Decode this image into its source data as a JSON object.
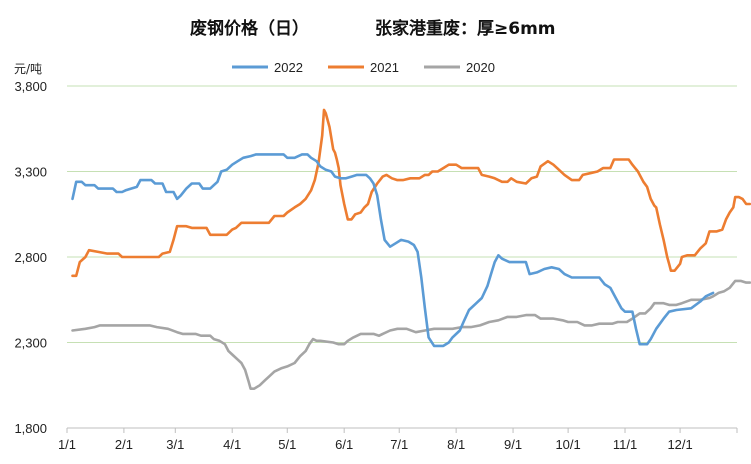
{
  "chart_data": {
    "type": "line",
    "title": "废钢价格（日）",
    "subtitle": "张家港重废：厚≥6mm",
    "ylabel": "元/吨",
    "ylim": [
      1800,
      3800
    ],
    "yticks": [
      1800,
      2300,
      2800,
      3300,
      3800
    ],
    "ytick_labels": [
      "1,800",
      "2,300",
      "2,800",
      "3,300",
      "3,800"
    ],
    "xlim": [
      0,
      365
    ],
    "xticks": [
      0,
      31,
      59,
      90,
      120,
      151,
      181,
      212,
      243,
      273,
      304,
      334,
      365
    ],
    "xtick_labels": [
      "1/1",
      "2/1",
      "3/1",
      "4/1",
      "5/1",
      "6/1",
      "7/1",
      "8/1",
      "9/1",
      "10/1",
      "11/1",
      "12/1",
      ""
    ],
    "grid": "horizontal",
    "legend_position": "top",
    "series": [
      {
        "name": "2022",
        "color": "#5B9BD5",
        "points": [
          [
            3,
            3140
          ],
          [
            5,
            3240
          ],
          [
            8,
            3240
          ],
          [
            10,
            3220
          ],
          [
            15,
            3220
          ],
          [
            17,
            3200
          ],
          [
            25,
            3200
          ],
          [
            27,
            3180
          ],
          [
            30,
            3180
          ],
          [
            32,
            3190
          ],
          [
            38,
            3210
          ],
          [
            40,
            3250
          ],
          [
            46,
            3250
          ],
          [
            48,
            3230
          ],
          [
            52,
            3230
          ],
          [
            54,
            3180
          ],
          [
            58,
            3180
          ],
          [
            60,
            3140
          ],
          [
            62,
            3160
          ],
          [
            65,
            3200
          ],
          [
            68,
            3230
          ],
          [
            72,
            3230
          ],
          [
            74,
            3200
          ],
          [
            78,
            3200
          ],
          [
            80,
            3220
          ],
          [
            82,
            3240
          ],
          [
            84,
            3300
          ],
          [
            87,
            3310
          ],
          [
            90,
            3340
          ],
          [
            93,
            3360
          ],
          [
            96,
            3380
          ],
          [
            100,
            3390
          ],
          [
            103,
            3400
          ],
          [
            118,
            3400
          ],
          [
            120,
            3380
          ],
          [
            124,
            3380
          ],
          [
            128,
            3400
          ],
          [
            131,
            3400
          ],
          [
            133,
            3380
          ],
          [
            136,
            3360
          ],
          [
            138,
            3330
          ],
          [
            141,
            3310
          ],
          [
            144,
            3300
          ],
          [
            146,
            3270
          ],
          [
            149,
            3260
          ],
          [
            152,
            3260
          ],
          [
            155,
            3270
          ],
          [
            158,
            3280
          ],
          [
            163,
            3280
          ],
          [
            165,
            3260
          ],
          [
            167,
            3230
          ],
          [
            169,
            3160
          ],
          [
            171,
            3020
          ],
          [
            173,
            2900
          ],
          [
            176,
            2860
          ],
          [
            179,
            2880
          ],
          [
            182,
            2900
          ],
          [
            186,
            2890
          ],
          [
            189,
            2870
          ],
          [
            191,
            2830
          ],
          [
            193,
            2680
          ],
          [
            195,
            2500
          ],
          [
            197,
            2330
          ],
          [
            200,
            2280
          ],
          [
            205,
            2280
          ],
          [
            208,
            2300
          ],
          [
            210,
            2330
          ],
          [
            214,
            2370
          ],
          [
            216,
            2420
          ],
          [
            219,
            2490
          ],
          [
            223,
            2530
          ],
          [
            226,
            2560
          ],
          [
            229,
            2630
          ],
          [
            231,
            2700
          ],
          [
            233,
            2770
          ],
          [
            235,
            2810
          ],
          [
            237,
            2790
          ],
          [
            241,
            2770
          ],
          [
            250,
            2770
          ],
          [
            252,
            2700
          ],
          [
            256,
            2710
          ],
          [
            260,
            2730
          ],
          [
            264,
            2740
          ],
          [
            268,
            2730
          ],
          [
            271,
            2700
          ],
          [
            275,
            2680
          ],
          [
            290,
            2680
          ],
          [
            293,
            2640
          ],
          [
            296,
            2620
          ],
          [
            299,
            2560
          ],
          [
            302,
            2500
          ],
          [
            304,
            2480
          ],
          [
            308,
            2480
          ],
          [
            310,
            2380
          ],
          [
            312,
            2290
          ],
          [
            316,
            2290
          ],
          [
            318,
            2320
          ],
          [
            321,
            2380
          ],
          [
            325,
            2440
          ],
          [
            328,
            2480
          ],
          [
            332,
            2490
          ],
          [
            340,
            2500
          ],
          [
            345,
            2540
          ],
          [
            348,
            2570
          ],
          [
            352,
            2590
          ]
        ]
      },
      {
        "name": "2021",
        "color": "#ED7D31",
        "points": [
          [
            3,
            2690
          ],
          [
            5,
            2690
          ],
          [
            7,
            2770
          ],
          [
            10,
            2800
          ],
          [
            12,
            2840
          ],
          [
            17,
            2830
          ],
          [
            22,
            2820
          ],
          [
            28,
            2820
          ],
          [
            30,
            2800
          ],
          [
            50,
            2800
          ],
          [
            52,
            2820
          ],
          [
            56,
            2830
          ],
          [
            58,
            2900
          ],
          [
            60,
            2980
          ],
          [
            65,
            2980
          ],
          [
            68,
            2970
          ],
          [
            76,
            2970
          ],
          [
            78,
            2930
          ],
          [
            84,
            2930
          ],
          [
            87,
            2930
          ],
          [
            90,
            2960
          ],
          [
            92,
            2970
          ],
          [
            95,
            3000
          ],
          [
            110,
            3000
          ],
          [
            113,
            3040
          ],
          [
            118,
            3040
          ],
          [
            120,
            3060
          ],
          [
            124,
            3090
          ],
          [
            127,
            3110
          ],
          [
            130,
            3140
          ],
          [
            133,
            3190
          ],
          [
            135,
            3250
          ],
          [
            137,
            3350
          ],
          [
            139,
            3510
          ],
          [
            140,
            3660
          ],
          [
            141,
            3640
          ],
          [
            143,
            3560
          ],
          [
            145,
            3430
          ],
          [
            146,
            3410
          ],
          [
            147,
            3370
          ],
          [
            148,
            3320
          ],
          [
            149,
            3220
          ],
          [
            151,
            3110
          ],
          [
            153,
            3020
          ],
          [
            155,
            3020
          ],
          [
            157,
            3050
          ],
          [
            160,
            3060
          ],
          [
            162,
            3090
          ],
          [
            164,
            3110
          ],
          [
            166,
            3180
          ],
          [
            169,
            3230
          ],
          [
            172,
            3270
          ],
          [
            174,
            3280
          ],
          [
            177,
            3260
          ],
          [
            180,
            3250
          ],
          [
            183,
            3250
          ],
          [
            187,
            3260
          ],
          [
            192,
            3260
          ],
          [
            195,
            3280
          ],
          [
            197,
            3280
          ],
          [
            199,
            3300
          ],
          [
            202,
            3300
          ],
          [
            205,
            3320
          ],
          [
            208,
            3340
          ],
          [
            212,
            3340
          ],
          [
            215,
            3320
          ],
          [
            224,
            3320
          ],
          [
            226,
            3280
          ],
          [
            230,
            3270
          ],
          [
            233,
            3260
          ],
          [
            237,
            3240
          ],
          [
            240,
            3240
          ],
          [
            242,
            3260
          ],
          [
            245,
            3240
          ],
          [
            250,
            3230
          ],
          [
            253,
            3260
          ],
          [
            256,
            3270
          ],
          [
            258,
            3330
          ],
          [
            262,
            3360
          ],
          [
            265,
            3340
          ],
          [
            267,
            3320
          ],
          [
            271,
            3280
          ],
          [
            275,
            3250
          ],
          [
            279,
            3250
          ],
          [
            281,
            3280
          ],
          [
            285,
            3290
          ],
          [
            289,
            3300
          ],
          [
            292,
            3320
          ],
          [
            296,
            3320
          ],
          [
            298,
            3370
          ],
          [
            301,
            3370
          ],
          [
            306,
            3370
          ],
          [
            308,
            3340
          ],
          [
            311,
            3300
          ],
          [
            314,
            3240
          ],
          [
            316,
            3210
          ],
          [
            318,
            3140
          ],
          [
            320,
            3100
          ],
          [
            321,
            3090
          ],
          [
            323,
            2990
          ],
          [
            325,
            2900
          ],
          [
            327,
            2800
          ],
          [
            328,
            2760
          ],
          [
            329,
            2720
          ],
          [
            331,
            2720
          ],
          [
            334,
            2760
          ],
          [
            335,
            2800
          ],
          [
            338,
            2810
          ],
          [
            342,
            2810
          ],
          [
            345,
            2850
          ],
          [
            348,
            2880
          ],
          [
            350,
            2950
          ],
          [
            354,
            2950
          ],
          [
            357,
            2960
          ],
          [
            359,
            3020
          ],
          [
            361,
            3060
          ],
          [
            363,
            3090
          ],
          [
            364,
            3150
          ],
          [
            366,
            3150
          ],
          [
            368,
            3140
          ],
          [
            370,
            3110
          ],
          [
            372,
            3110
          ]
        ]
      },
      {
        "name": "2020",
        "color": "#A5A5A5",
        "points": [
          [
            3,
            2370
          ],
          [
            10,
            2380
          ],
          [
            15,
            2390
          ],
          [
            18,
            2400
          ],
          [
            45,
            2400
          ],
          [
            49,
            2390
          ],
          [
            55,
            2380
          ],
          [
            60,
            2360
          ],
          [
            63,
            2350
          ],
          [
            70,
            2350
          ],
          [
            73,
            2340
          ],
          [
            78,
            2340
          ],
          [
            80,
            2320
          ],
          [
            83,
            2310
          ],
          [
            86,
            2290
          ],
          [
            88,
            2250
          ],
          [
            90,
            2230
          ],
          [
            93,
            2200
          ],
          [
            95,
            2180
          ],
          [
            97,
            2140
          ],
          [
            99,
            2070
          ],
          [
            100,
            2030
          ],
          [
            102,
            2030
          ],
          [
            105,
            2050
          ],
          [
            108,
            2080
          ],
          [
            110,
            2100
          ],
          [
            113,
            2130
          ],
          [
            117,
            2150
          ],
          [
            120,
            2160
          ],
          [
            124,
            2180
          ],
          [
            127,
            2220
          ],
          [
            130,
            2250
          ],
          [
            132,
            2290
          ],
          [
            134,
            2320
          ],
          [
            136,
            2310
          ],
          [
            138,
            2310
          ],
          [
            145,
            2300
          ],
          [
            148,
            2290
          ],
          [
            151,
            2290
          ],
          [
            153,
            2310
          ],
          [
            156,
            2330
          ],
          [
            160,
            2350
          ],
          [
            167,
            2350
          ],
          [
            170,
            2340
          ],
          [
            172,
            2350
          ],
          [
            176,
            2370
          ],
          [
            180,
            2380
          ],
          [
            185,
            2380
          ],
          [
            190,
            2360
          ],
          [
            195,
            2370
          ],
          [
            200,
            2380
          ],
          [
            210,
            2380
          ],
          [
            215,
            2390
          ],
          [
            220,
            2390
          ],
          [
            225,
            2400
          ],
          [
            230,
            2420
          ],
          [
            235,
            2430
          ],
          [
            240,
            2450
          ],
          [
            245,
            2450
          ],
          [
            250,
            2460
          ],
          [
            255,
            2460
          ],
          [
            258,
            2440
          ],
          [
            265,
            2440
          ],
          [
            270,
            2430
          ],
          [
            273,
            2420
          ],
          [
            278,
            2420
          ],
          [
            282,
            2400
          ],
          [
            286,
            2400
          ],
          [
            290,
            2410
          ],
          [
            297,
            2410
          ],
          [
            300,
            2420
          ],
          [
            305,
            2420
          ],
          [
            308,
            2440
          ],
          [
            312,
            2470
          ],
          [
            315,
            2470
          ],
          [
            318,
            2500
          ],
          [
            320,
            2530
          ],
          [
            325,
            2530
          ],
          [
            328,
            2520
          ],
          [
            332,
            2520
          ],
          [
            335,
            2530
          ],
          [
            340,
            2550
          ],
          [
            345,
            2550
          ],
          [
            350,
            2560
          ],
          [
            352,
            2570
          ],
          [
            355,
            2590
          ],
          [
            358,
            2600
          ],
          [
            361,
            2620
          ],
          [
            364,
            2660
          ],
          [
            367,
            2660
          ],
          [
            370,
            2650
          ],
          [
            372,
            2650
          ]
        ]
      }
    ]
  }
}
